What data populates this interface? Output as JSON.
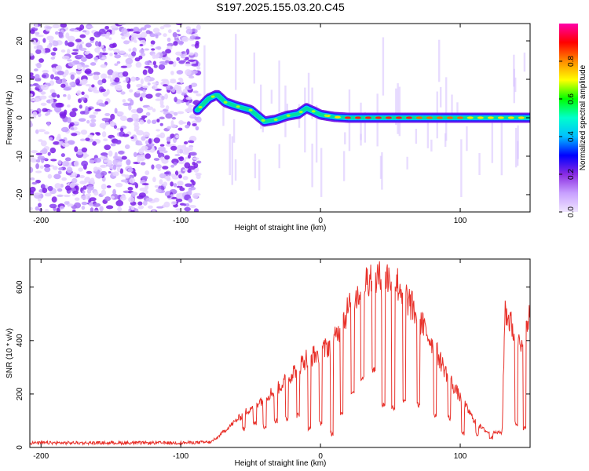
{
  "title": "S197.2025.155.03.20.C45",
  "chart_data": [
    {
      "type": "heatmap",
      "xlabel": "Height of straight line (km)",
      "ylabel": "Frequency (Hz)",
      "xlim": [
        -208,
        150
      ],
      "ylim": [
        -24.5,
        24.5
      ],
      "x_ticks": [
        -200,
        -100,
        0,
        100
      ],
      "y_ticks": [
        -20,
        -10,
        0,
        10,
        20
      ],
      "colorbar": {
        "label": "Normalized spectral amplitude",
        "range": [
          0.0,
          1.0
        ],
        "ticks": [
          "0.0",
          "0.2",
          "0.4",
          "0.6",
          "0.8"
        ],
        "colormap": [
          "#f0e6ff",
          "#c8a0ff",
          "#8a2be2",
          "#0000ff",
          "#00bfff",
          "#00ffcc",
          "#00ff00",
          "#ffff00",
          "#ff8c00",
          "#ff0000",
          "#ff00aa"
        ]
      },
      "noise_region_x": [
        -208,
        -87
      ],
      "tone_track": {
        "x": [
          -88,
          -80,
          -74,
          -68,
          -60,
          -50,
          -40,
          -32,
          -24,
          -16,
          -10,
          -4,
          0,
          10,
          20,
          40,
          60,
          80,
          100,
          120,
          140,
          150
        ],
        "y": [
          2,
          5,
          6,
          4,
          3,
          2,
          -1,
          -0.5,
          0.5,
          1,
          2.5,
          1.5,
          0.8,
          0.2,
          0,
          0,
          0,
          0,
          0,
          0,
          0,
          0
        ]
      },
      "grid": false
    },
    {
      "type": "line",
      "xlabel": "Height of straight line (km)",
      "ylabel": "SNR (10 * v/v)",
      "xlim": [
        -208,
        150
      ],
      "ylim": [
        0,
        705
      ],
      "x_ticks": [
        -200,
        -100,
        0,
        100
      ],
      "y_ticks": [
        0,
        200,
        400,
        600
      ],
      "series_color": "#e8312a",
      "envelope": {
        "x": [
          -208,
          -100,
          -78,
          -70,
          -60,
          -50,
          -40,
          -30,
          -20,
          -10,
          0,
          10,
          20,
          30,
          35,
          40,
          45,
          50,
          55,
          60,
          70,
          80,
          90,
          100,
          110,
          115,
          120,
          130,
          132,
          140,
          145,
          150
        ],
        "y": [
          15,
          15,
          18,
          60,
          110,
          160,
          200,
          240,
          300,
          360,
          380,
          430,
          560,
          650,
          690,
          680,
          670,
          690,
          660,
          620,
          520,
          420,
          300,
          200,
          110,
          80,
          60,
          60,
          560,
          440,
          380,
          560
        ]
      },
      "dropouts": [
        {
          "x": -55,
          "y": 60
        },
        {
          "x": -47,
          "y": 80
        },
        {
          "x": -40,
          "y": 70
        },
        {
          "x": -32,
          "y": 90
        },
        {
          "x": -24,
          "y": 100
        },
        {
          "x": -16,
          "y": 110
        },
        {
          "x": -8,
          "y": 60
        },
        {
          "x": 0,
          "y": 80
        },
        {
          "x": 8,
          "y": 40
        },
        {
          "x": 15,
          "y": 120
        },
        {
          "x": 23,
          "y": 200
        },
        {
          "x": 30,
          "y": 250
        },
        {
          "x": 38,
          "y": 280
        },
        {
          "x": 45,
          "y": 150
        },
        {
          "x": 52,
          "y": 140
        },
        {
          "x": 60,
          "y": 160
        },
        {
          "x": 70,
          "y": 150
        },
        {
          "x": 82,
          "y": 110
        },
        {
          "x": 92,
          "y": 100
        },
        {
          "x": 102,
          "y": 40
        },
        {
          "x": 112,
          "y": 40
        },
        {
          "x": 122,
          "y": 30
        },
        {
          "x": 140,
          "y": 80
        },
        {
          "x": 146,
          "y": 60
        }
      ],
      "grid": false
    }
  ]
}
